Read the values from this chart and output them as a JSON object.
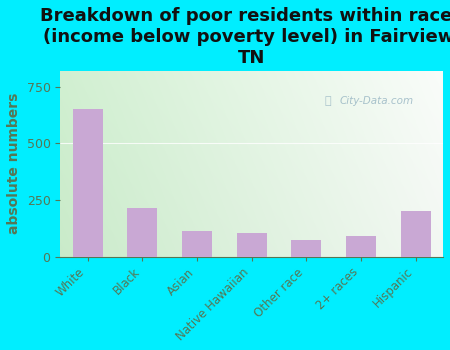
{
  "title": "Breakdown of poor residents within races\n(income below poverty level) in Fairview,\nTN",
  "categories": [
    "White",
    "Black",
    "Asian",
    "Native Hawaiian",
    "Other race",
    "2+ races",
    "Hispanic"
  ],
  "values": [
    650,
    215,
    115,
    105,
    75,
    90,
    200
  ],
  "bar_color": "#c9a8d4",
  "ylabel": "absolute numbers",
  "yticks": [
    0,
    250,
    500,
    750
  ],
  "ylim": [
    0,
    820
  ],
  "bg_color": "#00eeff",
  "plot_bg_top_left": "#d4efc0",
  "plot_bg_top_right": "#f0faf0",
  "plot_bg_bottom": "#e8f8e0",
  "watermark": "City-Data.com",
  "label_color": "#557755",
  "title_fontsize": 13,
  "ylabel_fontsize": 10,
  "tick_color": "#557755"
}
